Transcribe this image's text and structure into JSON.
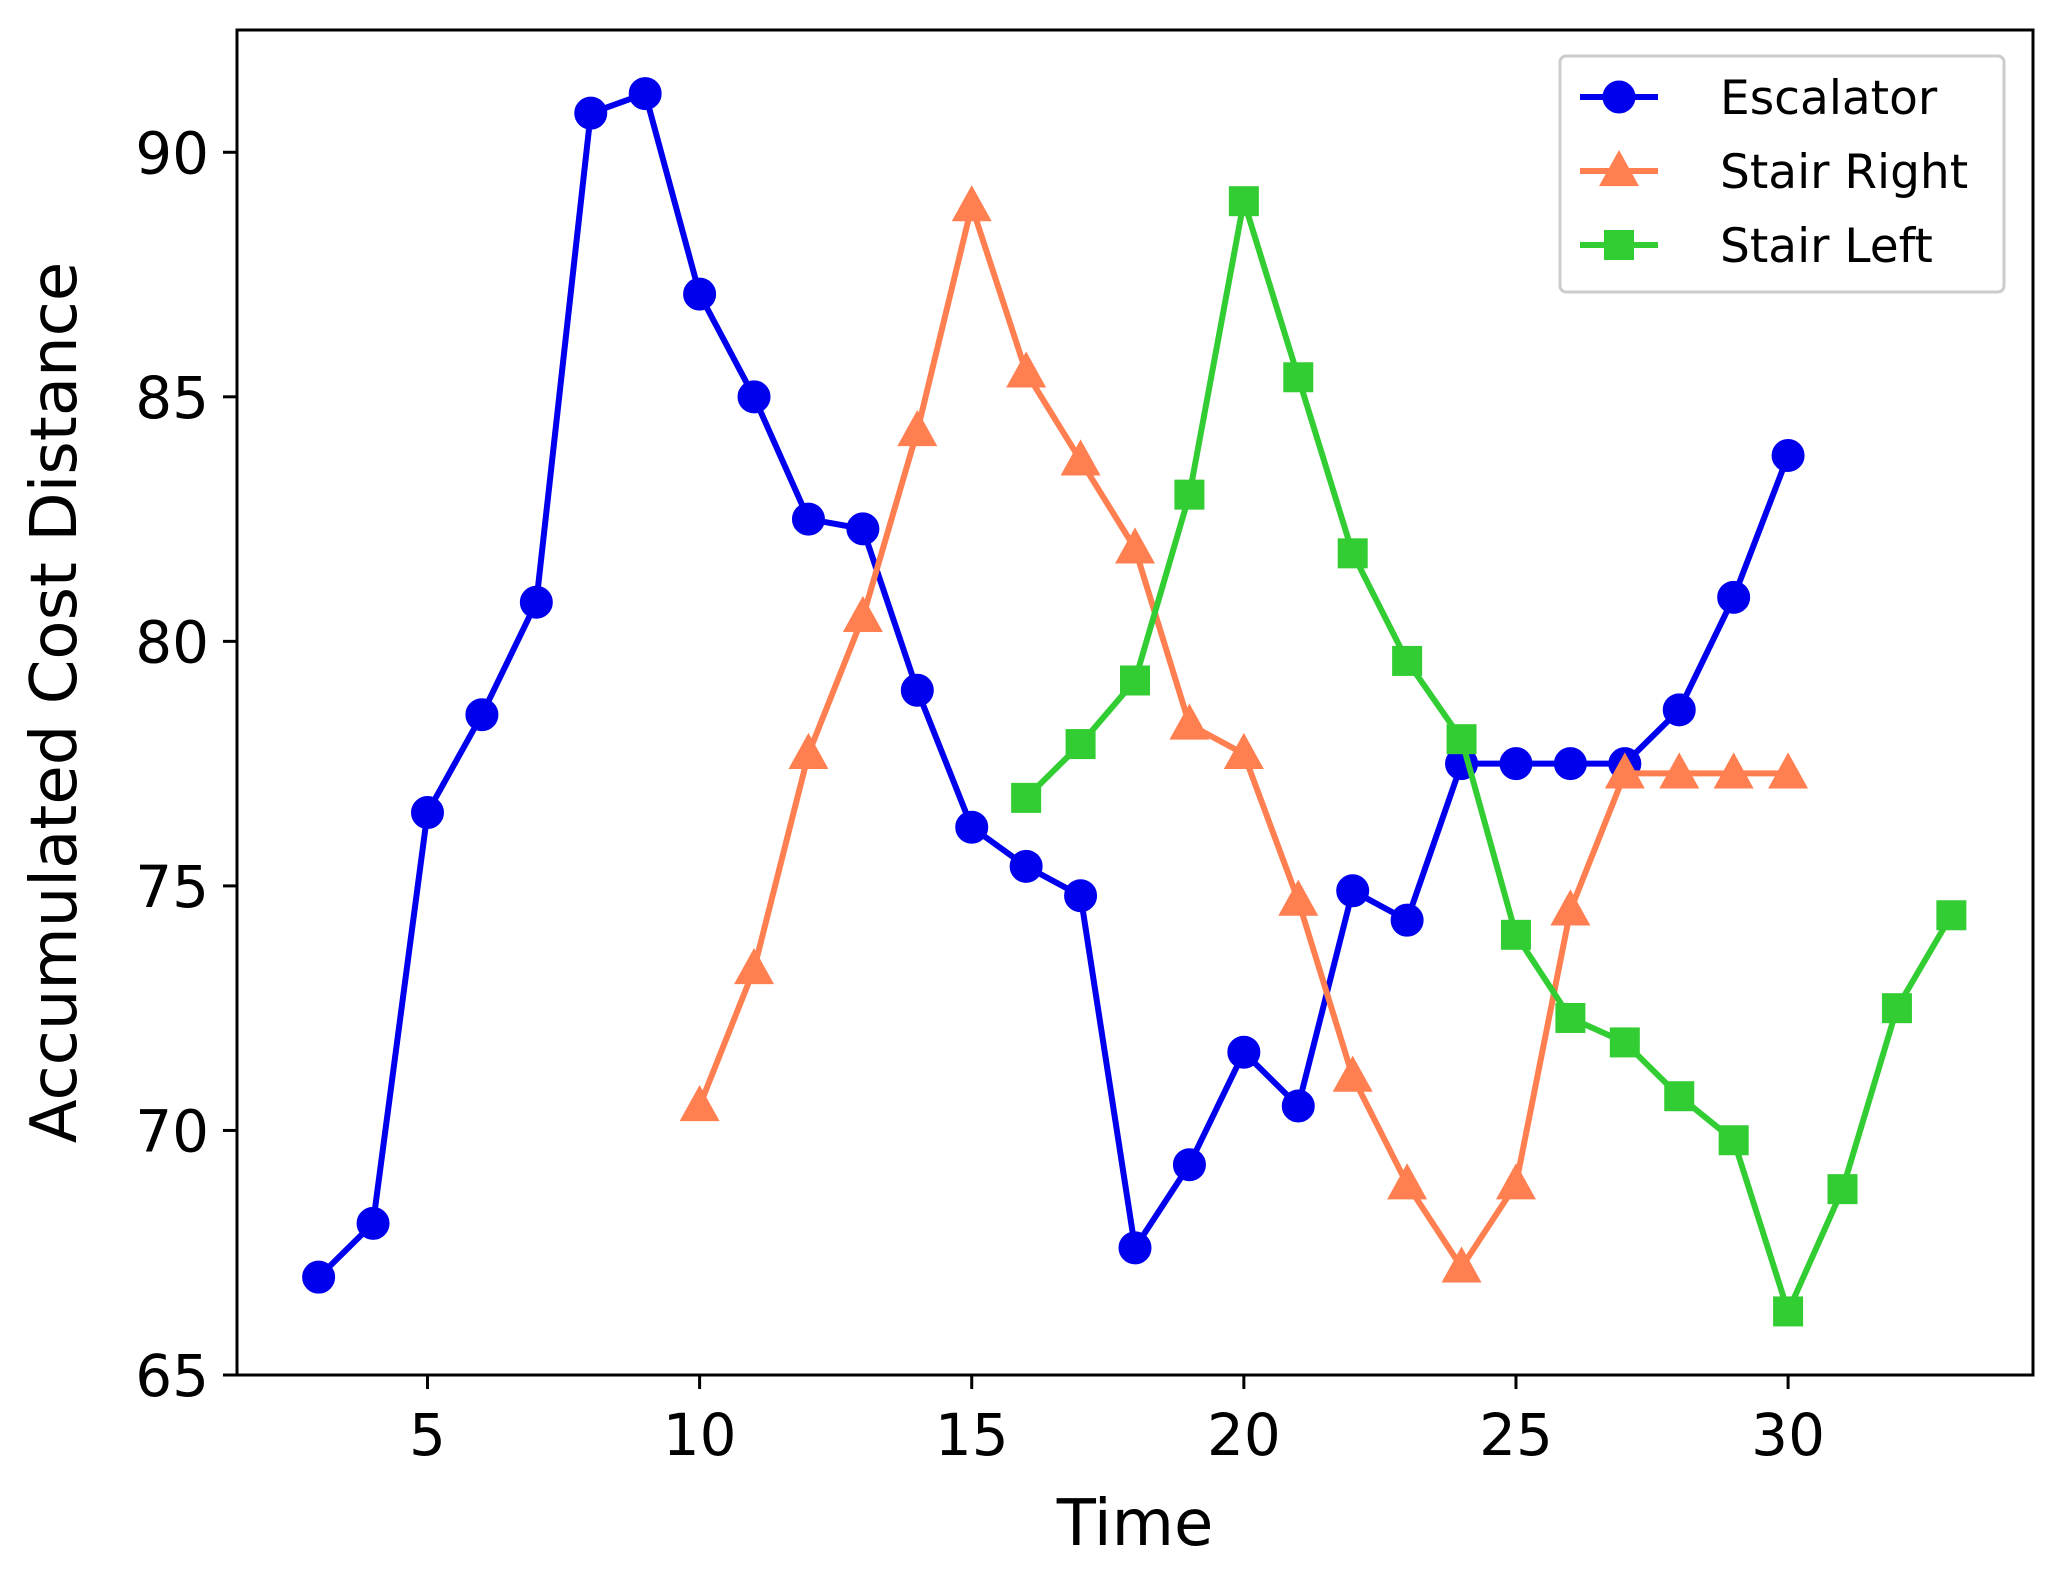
{
  "chart_data": {
    "type": "line",
    "title": "",
    "xlabel": "Time",
    "ylabel": "Accumulated Cost Distance",
    "xlim": [
      1.5,
      34.5
    ],
    "ylim": [
      65,
      92.5
    ],
    "xticks": [
      5,
      10,
      15,
      20,
      25,
      30
    ],
    "yticks": [
      65,
      70,
      75,
      80,
      85,
      90
    ],
    "grid": false,
    "legend_position": "top-right",
    "series": [
      {
        "name": "Escalator",
        "color": "#0000ee",
        "marker": "circle",
        "x": [
          3,
          4,
          5,
          6,
          7,
          8,
          9,
          10,
          11,
          12,
          13,
          14,
          15,
          16,
          17,
          18,
          19,
          20,
          21,
          22,
          23,
          24,
          25,
          26,
          27,
          28,
          29,
          30
        ],
        "y": [
          67.0,
          68.1,
          76.5,
          78.5,
          80.8,
          90.8,
          91.2,
          87.1,
          85.0,
          82.5,
          82.3,
          79.0,
          76.2,
          75.4,
          74.8,
          67.6,
          69.3,
          71.6,
          70.5,
          74.9,
          74.3,
          77.5,
          77.5,
          77.5,
          77.5,
          78.6,
          80.9,
          83.8
        ]
      },
      {
        "name": "Stair Right",
        "color": "#ff7f50",
        "marker": "triangle",
        "x": [
          10,
          11,
          12,
          13,
          14,
          15,
          16,
          17,
          18,
          19,
          20,
          21,
          22,
          23,
          24,
          25,
          26,
          27,
          28,
          29,
          30
        ],
        "y": [
          70.5,
          73.3,
          77.7,
          80.5,
          84.3,
          88.9,
          85.5,
          83.7,
          81.9,
          78.3,
          77.7,
          74.7,
          71.1,
          68.9,
          67.2,
          68.9,
          74.5,
          77.3,
          77.3,
          77.3,
          77.3
        ]
      },
      {
        "name": "Stair Left",
        "color": "#32cd32",
        "marker": "square",
        "x": [
          16,
          17,
          18,
          19,
          20,
          21,
          22,
          23,
          24,
          25,
          26,
          27,
          28,
          29,
          30,
          31,
          32,
          33
        ],
        "y": [
          76.8,
          77.9,
          79.2,
          83.0,
          89.0,
          85.4,
          81.8,
          79.6,
          78.0,
          74.0,
          72.3,
          71.8,
          70.7,
          69.8,
          66.3,
          68.8,
          72.5,
          74.4
        ]
      }
    ]
  }
}
